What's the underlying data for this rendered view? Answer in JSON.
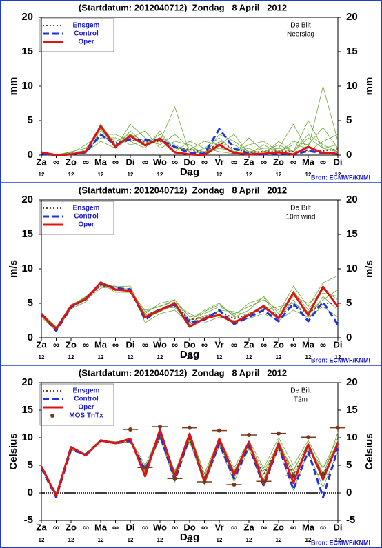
{
  "chart_data": [
    {
      "type": "line",
      "title": "(Startdatum: 2012040712)  Zondag   8 April   2012",
      "station": "De Bilt",
      "variable": "Neerslag",
      "ylabel": "mm",
      "xlabel": "Dag",
      "source": "Bron: ECMWF/KNMI",
      "legend": "top-left",
      "categories": [
        "Za",
        "∞",
        "Zo",
        "∞",
        "Ma",
        "∞",
        "Di",
        "∞",
        "Wo",
        "∞",
        "Do",
        "∞",
        "Vr",
        "∞",
        "Za",
        "∞",
        "Zo",
        "∞",
        "Ma",
        "∞",
        "Di"
      ],
      "sublabels": [
        "12",
        null,
        "12",
        null,
        "12",
        null,
        "12",
        null,
        "12",
        null,
        "12",
        null,
        "12",
        null,
        "12",
        null,
        "12",
        null,
        "12",
        null,
        "12"
      ],
      "ylim": [
        0,
        20
      ],
      "yticks": [
        0,
        5,
        10,
        15,
        20
      ],
      "ensemble": {
        "color": "#6aa83a",
        "members": [
          [
            0.3,
            0,
            0.5,
            1,
            3.5,
            2,
            3,
            2,
            2.5,
            1.5,
            0.5,
            0.2,
            2,
            1.5,
            0.3,
            0.5,
            1,
            0.5,
            2.5,
            1,
            1.5
          ],
          [
            0.1,
            0,
            0.2,
            0.5,
            2,
            1,
            4.5,
            2.5,
            1.5,
            3,
            1,
            0.5,
            1,
            0.5,
            1.5,
            2,
            0.5,
            1.5,
            1,
            10,
            2
          ],
          [
            0.2,
            0.1,
            0.3,
            1.5,
            3,
            3,
            2,
            1,
            3.5,
            0.5,
            2,
            1,
            2.5,
            0.5,
            1,
            0,
            2,
            0.5,
            3,
            1.5,
            0.5
          ],
          [
            0.3,
            0,
            0.1,
            0.3,
            4.5,
            1.5,
            2.5,
            3.5,
            1,
            2,
            1.5,
            0,
            3,
            2,
            0.5,
            1,
            1,
            4.5,
            0.5,
            2,
            3
          ],
          [
            0.1,
            0,
            0,
            0.8,
            2.5,
            2.5,
            1.5,
            2,
            2,
            7,
            0.3,
            1,
            0.5,
            0.2,
            2.5,
            0.5,
            1.5,
            0.5,
            5,
            1,
            0.5
          ],
          [
            0.2,
            0.1,
            0.4,
            0.6,
            3.8,
            1,
            3.5,
            1.5,
            3,
            1,
            0.8,
            2,
            1.5,
            3,
            0.2,
            1.5,
            0.3,
            2,
            1.5,
            4,
            1
          ]
        ]
      },
      "series": [
        {
          "name": "Ensgem",
          "color": "#7a3a1a",
          "style": "dotted",
          "values": [
            0.2,
            0,
            0.2,
            0.6,
            2.8,
            1.8,
            2.2,
            1.9,
            2.0,
            1.2,
            0.8,
            0.4,
            1.8,
            0.9,
            0.4,
            0.5,
            0.6,
            0.5,
            0.7,
            0.6,
            0.9
          ]
        },
        {
          "name": "Control",
          "color": "#1f32e0",
          "style": "dashed",
          "values": [
            0.2,
            0,
            0.1,
            0.4,
            3.0,
            1.5,
            2.3,
            2.2,
            2.2,
            1.2,
            0.3,
            0.2,
            3.8,
            1.0,
            0.2,
            0.1,
            0.2,
            0.1,
            0.6,
            0.3,
            0.4
          ]
        },
        {
          "name": "Oper",
          "color": "#dc1414",
          "style": "solid",
          "values": [
            0.4,
            0,
            0.1,
            0.5,
            4.2,
            1.2,
            2.8,
            1.4,
            2.4,
            0.4,
            0.1,
            0,
            1.5,
            0.3,
            0.1,
            0.2,
            0.4,
            0.1,
            1.2,
            0.3,
            0.2
          ]
        }
      ]
    },
    {
      "type": "line",
      "title": "(Startdatum: 2012040712)  Zondag   8 April   2012",
      "station": "De Bilt",
      "variable": "10m wind",
      "ylabel": "m/s",
      "xlabel": "Dag",
      "source": "Bron: ECMWF/KNMI",
      "legend": "top-left",
      "categories": [
        "Za",
        "∞",
        "Zo",
        "∞",
        "Ma",
        "∞",
        "Di",
        "∞",
        "Wo",
        "∞",
        "Do",
        "∞",
        "Vr",
        "∞",
        "Za",
        "∞",
        "Zo",
        "∞",
        "Ma",
        "∞",
        "Di"
      ],
      "sublabels": [
        "12",
        null,
        "12",
        null,
        "12",
        null,
        "12",
        null,
        "12",
        null,
        "12",
        null,
        "12",
        null,
        "12",
        null,
        "12",
        null,
        "12",
        null,
        "12"
      ],
      "ylim": [
        0,
        20
      ],
      "yticks": [
        0,
        5,
        10,
        15,
        20
      ],
      "ensemble": {
        "color": "#6aa83a",
        "members": [
          [
            3.5,
            1.5,
            4.8,
            5.8,
            7.5,
            7.5,
            6.5,
            4,
            4.5,
            5.5,
            3,
            3.5,
            4.5,
            3.5,
            4.5,
            5.5,
            4,
            6,
            5,
            6.5,
            6
          ],
          [
            3,
            1,
            4.2,
            5.2,
            8.2,
            6.8,
            7.2,
            2.2,
            3.5,
            4,
            2,
            2.2,
            3,
            2.5,
            2.8,
            3.5,
            2.5,
            4,
            3,
            4.5,
            3
          ],
          [
            3.2,
            1.2,
            4.6,
            6,
            7.8,
            7,
            6.8,
            3.5,
            5,
            5.5,
            2.5,
            4,
            5,
            3,
            4,
            6,
            3.5,
            7.5,
            4.5,
            8,
            9
          ],
          [
            3.6,
            1.6,
            4.4,
            5.5,
            7.2,
            7.4,
            7.5,
            2.8,
            3.8,
            4.8,
            3.5,
            2.5,
            4,
            3.8,
            3.2,
            4.8,
            2.8,
            5.5,
            2.5,
            6,
            4
          ],
          [
            3.4,
            1.3,
            4.7,
            5.4,
            7.9,
            6.6,
            6.6,
            3.3,
            4.2,
            4.4,
            2.2,
            3.2,
            3.5,
            2,
            3.6,
            4,
            4.5,
            5,
            3.8,
            5.5,
            7
          ],
          [
            3.3,
            1.1,
            4.3,
            5.9,
            8.1,
            7.3,
            7,
            3.8,
            4.6,
            5.2,
            1.8,
            3.8,
            4.8,
            3.2,
            5,
            5.8,
            3,
            6.8,
            4,
            7,
            5.5
          ]
        ]
      },
      "series": [
        {
          "name": "Ensgem",
          "color": "#7a3a1a",
          "style": "dotted",
          "values": [
            3.4,
            1.4,
            4.5,
            5.6,
            7.6,
            7.1,
            6.8,
            3.2,
            4.1,
            4.6,
            2.6,
            3.0,
            3.8,
            2.8,
            3.4,
            4.3,
            3.2,
            4.6,
            3.6,
            5.0,
            5.0
          ]
        },
        {
          "name": "Control",
          "color": "#1f32e0",
          "style": "dashed",
          "values": [
            3.5,
            1.0,
            4.4,
            5.7,
            7.8,
            7.2,
            7.0,
            2.6,
            4.2,
            4.8,
            2.2,
            2.6,
            4.0,
            2.0,
            3.0,
            4.0,
            2.4,
            5.0,
            2.4,
            5.2,
            1.9
          ]
        },
        {
          "name": "Oper",
          "color": "#dc1414",
          "style": "solid",
          "values": [
            3.3,
            1.3,
            4.6,
            5.6,
            8.0,
            7.0,
            6.8,
            3.0,
            4.0,
            5.0,
            1.6,
            2.8,
            3.3,
            2.2,
            3.3,
            4.6,
            2.8,
            6.5,
            3.3,
            7.4,
            4.5
          ]
        }
      ]
    },
    {
      "type": "line",
      "title": "(Startdatum: 2012040712)  Zondag   8 April   2012",
      "station": "De Bilt",
      "variable": "T2m",
      "ylabel": "Celsius",
      "xlabel": "Dag",
      "source": "Bron: ECMWF/KNMI",
      "legend": "top-left",
      "zero_line": true,
      "categories": [
        "Za",
        "∞",
        "Zo",
        "∞",
        "Ma",
        "∞",
        "Di",
        "∞",
        "Wo",
        "∞",
        "Do",
        "∞",
        "Vr",
        "∞",
        "Za",
        "∞",
        "Zo",
        "∞",
        "Ma",
        "∞",
        "Di"
      ],
      "sublabels": [
        "12",
        null,
        "12",
        null,
        "12",
        null,
        "12",
        null,
        "12",
        null,
        "12",
        null,
        "12",
        null,
        "12",
        null,
        "12",
        null,
        "12",
        null,
        "12"
      ],
      "ylim": [
        -5,
        20
      ],
      "yticks": [
        -5,
        0,
        5,
        10,
        15,
        20
      ],
      "ensemble": {
        "color": "#6aa83a",
        "members": [
          [
            4.7,
            -0.5,
            8.2,
            6.7,
            9.3,
            9.2,
            9.8,
            5,
            11,
            3.5,
            11,
            3.5,
            10,
            4.5,
            9.5,
            4.5,
            10,
            5,
            9.5,
            4.5,
            10
          ],
          [
            4.5,
            -0.2,
            7.9,
            7.1,
            9.6,
            8.9,
            9.3,
            3.5,
            10,
            2,
            9.5,
            1.5,
            8.5,
            2,
            8,
            1.5,
            8,
            0.5,
            7.5,
            1,
            7.5
          ],
          [
            4.6,
            0,
            8.1,
            6.8,
            9.4,
            9,
            9.6,
            4.5,
            10.5,
            4,
            10,
            3,
            9.5,
            4,
            9,
            2.5,
            9,
            4,
            9,
            3,
            11
          ],
          [
            4.8,
            -0.4,
            7.8,
            7,
            9.7,
            9.1,
            9.2,
            3.8,
            9.8,
            3,
            9.8,
            2.5,
            8.8,
            3,
            8.2,
            3.5,
            8.2,
            2.5,
            8,
            4.5,
            8.5
          ],
          [
            4.4,
            -0.6,
            8,
            6.9,
            9.5,
            9.3,
            9.5,
            4.2,
            10.3,
            2.5,
            10.5,
            3.5,
            9.8,
            2.5,
            9.2,
            2,
            9.5,
            3,
            8.5,
            2,
            9
          ],
          [
            4.6,
            -0.3,
            8.3,
            6.6,
            9.4,
            9,
            9.7,
            4,
            10.8,
            3.8,
            9.2,
            2.2,
            9,
            3.8,
            8.8,
            4,
            8.8,
            4.2,
            8.8,
            3.5,
            9.5
          ]
        ]
      },
      "series": [
        {
          "name": "Ensgem",
          "color": "#7a3a1a",
          "style": "dotted",
          "values": [
            4.6,
            -0.3,
            8.0,
            6.9,
            9.5,
            9.1,
            9.5,
            4.0,
            10.2,
            3.2,
            9.8,
            2.8,
            9.2,
            3.4,
            8.6,
            3.2,
            8.6,
            3.4,
            8.2,
            3.2,
            8.4
          ]
        },
        {
          "name": "Control",
          "color": "#1f32e0",
          "style": "dashed",
          "values": [
            4.5,
            -0.8,
            7.8,
            7.0,
            9.5,
            9.0,
            9.4,
            4.2,
            10.5,
            2.3,
            10.2,
            2.0,
            9.0,
            2.6,
            8.5,
            1.2,
            8.5,
            0.6,
            7.5,
            -0.8,
            8.0
          ]
        },
        {
          "name": "Oper",
          "color": "#dc1414",
          "style": "solid",
          "values": [
            4.8,
            -0.5,
            8.3,
            6.8,
            9.5,
            9.0,
            9.8,
            3.0,
            11.5,
            3.0,
            10.7,
            2.0,
            9.8,
            3.3,
            9.2,
            1.5,
            9.0,
            1.8,
            8.8,
            2.5,
            9.0
          ]
        },
        {
          "name": "MOS TnTx",
          "color": "#7a3a1a",
          "style": "dot",
          "values": [
            null,
            null,
            null,
            null,
            null,
            null,
            11.5,
            4.6,
            12,
            2.6,
            11.8,
            2.0,
            11.3,
            1.5,
            10.5,
            2.1,
            10.8,
            3.1,
            10.1,
            3.4,
            11.8
          ]
        }
      ]
    }
  ]
}
